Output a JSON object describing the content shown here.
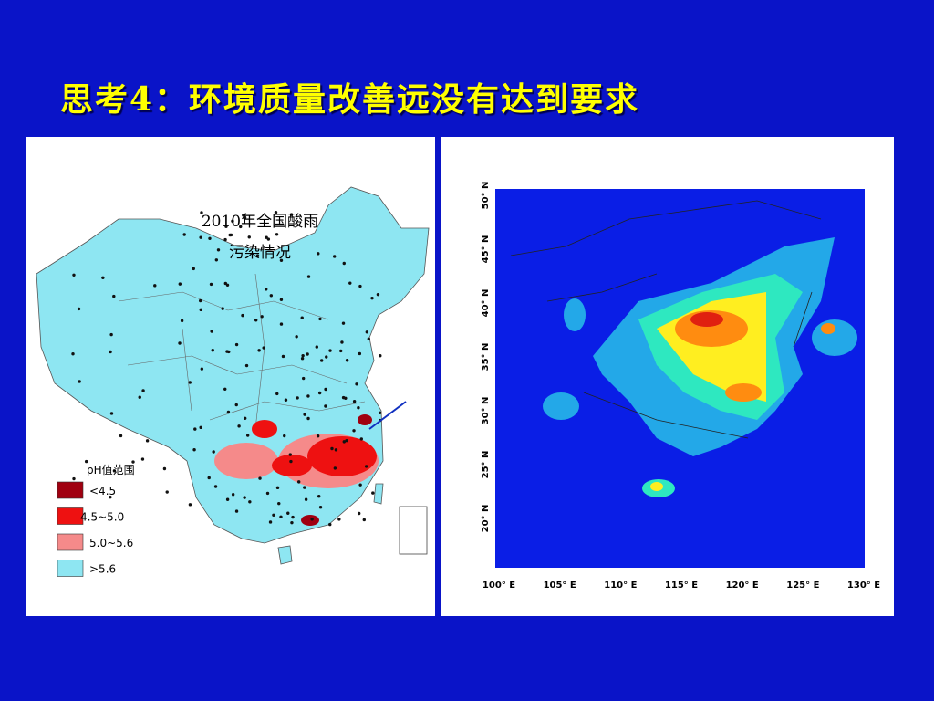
{
  "header": {
    "title": "思考4：环境质量改善远没有达到要求"
  },
  "left_map": {
    "caption": [
      "2010年全国酸雨",
      "污染情况"
    ],
    "legend": {
      "title": "pH值范围",
      "items": [
        {
          "label": "<4.5",
          "color": "#a00010"
        },
        {
          "label": "4.5~5.0",
          "color": "#ee1111"
        },
        {
          "label": "5.0~5.6",
          "color": "#f58a8a"
        },
        {
          "label": ">5.6",
          "color": "#8ee6f2"
        }
      ]
    }
  },
  "right_map": {
    "lat_labels": [
      "50° N",
      "45° N",
      "40° N",
      "35° N",
      "30° N",
      "25° N",
      "20° N"
    ],
    "lon_labels": [
      "100° E",
      "105° E",
      "110° E",
      "115° E",
      "120° E",
      "125° E",
      "130° E"
    ]
  }
}
